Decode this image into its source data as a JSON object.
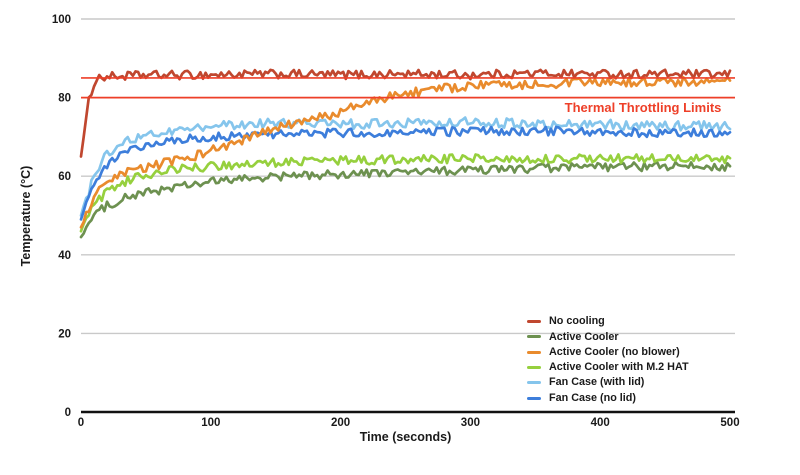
{
  "chart_data": {
    "type": "line",
    "title": "",
    "xlabel": "Time (seconds)",
    "ylabel": "Temperature (°C)",
    "xlim": [
      0,
      500
    ],
    "ylim": [
      0,
      100
    ],
    "x_ticks": [
      0,
      100,
      200,
      300,
      400,
      500
    ],
    "y_ticks": [
      0,
      20,
      40,
      60,
      80,
      100
    ],
    "grid": true,
    "grid_color": "#c9c9c9",
    "axis_color": "#111111",
    "legend_position": "inside-right-bottom",
    "annotation": {
      "text": "Thermal Throttling Limits",
      "color": "#ee3f28",
      "x": 433,
      "y": 77.5
    },
    "reference_lines": [
      {
        "label": "throttle-soft-limit",
        "y": 85,
        "color": "#ee3f28"
      },
      {
        "label": "throttle-hard-limit",
        "y": 80,
        "color": "#ee3f28"
      }
    ],
    "series": [
      {
        "name": "No cooling",
        "color": "#c0472f",
        "noise": 1.1,
        "points": [
          [
            0,
            65
          ],
          [
            3,
            72
          ],
          [
            6,
            79
          ],
          [
            9,
            83
          ],
          [
            12,
            85
          ],
          [
            20,
            85.3
          ],
          [
            50,
            85.7
          ],
          [
            100,
            85.8
          ],
          [
            150,
            86
          ],
          [
            200,
            85.8
          ],
          [
            250,
            86
          ],
          [
            300,
            85.8
          ],
          [
            350,
            86.2
          ],
          [
            400,
            86
          ],
          [
            450,
            86
          ],
          [
            500,
            85.8
          ]
        ]
      },
      {
        "name": "Active Cooler",
        "color": "#6d9150",
        "noise": 1.1,
        "points": [
          [
            0,
            44.5
          ],
          [
            5,
            47.5
          ],
          [
            10,
            50
          ],
          [
            20,
            52.5
          ],
          [
            30,
            54
          ],
          [
            40,
            55
          ],
          [
            60,
            56.5
          ],
          [
            80,
            57.5
          ],
          [
            100,
            58.5
          ],
          [
            130,
            59.5
          ],
          [
            160,
            60
          ],
          [
            200,
            60.5
          ],
          [
            250,
            61
          ],
          [
            300,
            61.5
          ],
          [
            350,
            62
          ],
          [
            400,
            62.3
          ],
          [
            450,
            62.5
          ],
          [
            500,
            62.5
          ]
        ]
      },
      {
        "name": "Active Cooler (no blower)",
        "color": "#e98b2d",
        "noise": 1.2,
        "points": [
          [
            0,
            47
          ],
          [
            5,
            51
          ],
          [
            10,
            54
          ],
          [
            15,
            56.5
          ],
          [
            20,
            58
          ],
          [
            30,
            60
          ],
          [
            40,
            61.5
          ],
          [
            60,
            63
          ],
          [
            80,
            64.5
          ],
          [
            100,
            66.5
          ],
          [
            120,
            68.5
          ],
          [
            140,
            71
          ],
          [
            160,
            73
          ],
          [
            180,
            74.5
          ],
          [
            200,
            76.5
          ],
          [
            220,
            78.5
          ],
          [
            240,
            80.5
          ],
          [
            260,
            81.5
          ],
          [
            280,
            82.3
          ],
          [
            300,
            83
          ],
          [
            330,
            83.3
          ],
          [
            360,
            83.6
          ],
          [
            400,
            83.8
          ],
          [
            450,
            84
          ],
          [
            500,
            84
          ]
        ]
      },
      {
        "name": "Active Cooler with M.2 HAT",
        "color": "#96d03e",
        "noise": 1.1,
        "points": [
          [
            0,
            46
          ],
          [
            5,
            50
          ],
          [
            10,
            53
          ],
          [
            20,
            56
          ],
          [
            30,
            58
          ],
          [
            40,
            59.5
          ],
          [
            60,
            61
          ],
          [
            80,
            62
          ],
          [
            100,
            62.5
          ],
          [
            150,
            63.5
          ],
          [
            200,
            64
          ],
          [
            250,
            64.3
          ],
          [
            300,
            64.5
          ],
          [
            350,
            64.5
          ],
          [
            400,
            64.5
          ],
          [
            450,
            64.4
          ],
          [
            500,
            64.2
          ]
        ]
      },
      {
        "name": "Fan Case (with lid)",
        "color": "#85c5ec",
        "noise": 1.2,
        "points": [
          [
            0,
            50
          ],
          [
            4,
            54
          ],
          [
            8,
            58
          ],
          [
            12,
            61.5
          ],
          [
            16,
            64
          ],
          [
            20,
            65.5
          ],
          [
            25,
            67
          ],
          [
            30,
            68
          ],
          [
            40,
            69.5
          ],
          [
            50,
            70.5
          ],
          [
            60,
            71
          ],
          [
            80,
            72
          ],
          [
            100,
            72.5
          ],
          [
            130,
            73.5
          ],
          [
            160,
            73.5
          ],
          [
            200,
            73.2
          ],
          [
            250,
            73.5
          ],
          [
            300,
            73.8
          ],
          [
            350,
            73.3
          ],
          [
            400,
            73.2
          ],
          [
            450,
            72.8
          ],
          [
            500,
            72.7
          ]
        ]
      },
      {
        "name": "Fan Case (no lid)",
        "color": "#3d7edb",
        "noise": 1.1,
        "points": [
          [
            0,
            49
          ],
          [
            4,
            53
          ],
          [
            8,
            56.5
          ],
          [
            12,
            59.5
          ],
          [
            16,
            61.5
          ],
          [
            20,
            63
          ],
          [
            25,
            64.5
          ],
          [
            30,
            65.5
          ],
          [
            40,
            67
          ],
          [
            50,
            68
          ],
          [
            60,
            68.5
          ],
          [
            80,
            69.5
          ],
          [
            100,
            70
          ],
          [
            130,
            70.5
          ],
          [
            160,
            71
          ],
          [
            200,
            71
          ],
          [
            250,
            71
          ],
          [
            300,
            71.5
          ],
          [
            350,
            71.5
          ],
          [
            400,
            71.3
          ],
          [
            450,
            71
          ],
          [
            500,
            71
          ]
        ]
      }
    ]
  }
}
